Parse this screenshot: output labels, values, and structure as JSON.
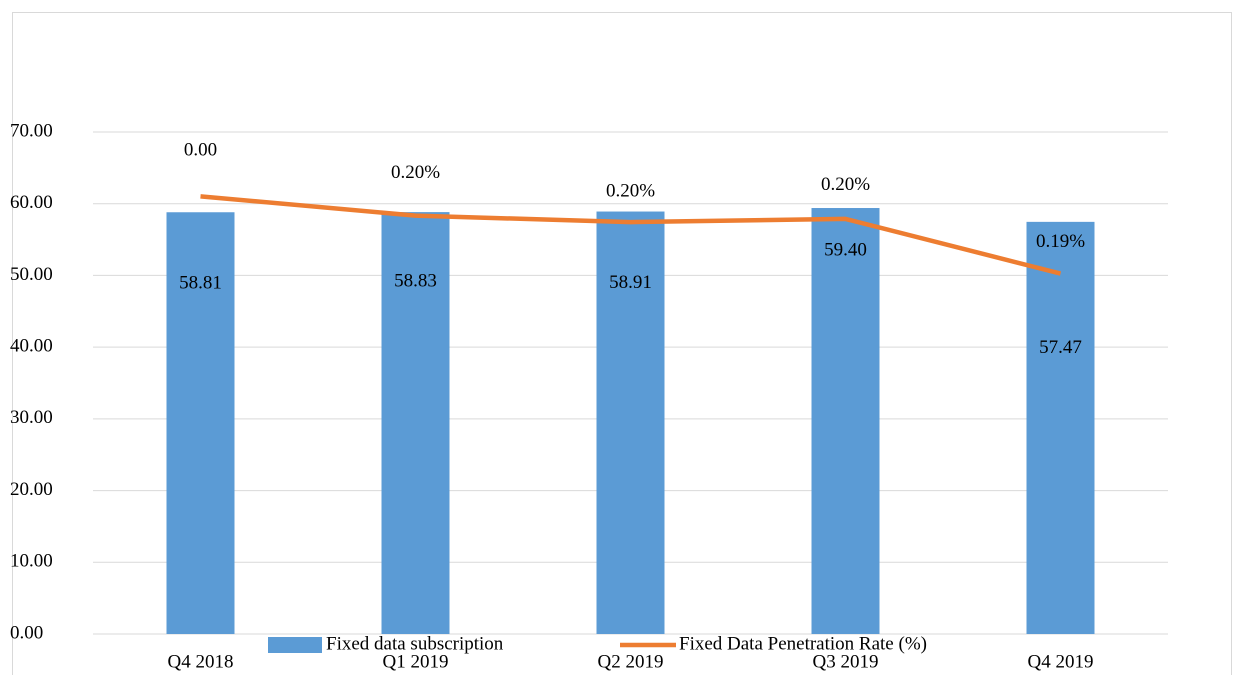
{
  "chart_data": {
    "type": "bar_line",
    "categories": [
      "Q4 2018",
      "Q1 2019",
      "Q2 2019",
      "Q3 2019",
      "Q4 2019"
    ],
    "series": [
      {
        "name": "Fixed data subscription",
        "color": "#5b9bd5",
        "type": "bar",
        "values": [
          58.81,
          58.83,
          58.91,
          59.4,
          57.47
        ],
        "value_labels": [
          "58.81",
          "58.83",
          "58.91",
          "59.40",
          "57.47"
        ]
      },
      {
        "name": "Fixed Data Penetration Rate (%)",
        "color": "#ed7d31",
        "type": "line",
        "axis": "y2",
        "values": [
          0.0021,
          0.00204,
          0.00202,
          0.00203,
          0.00186
        ],
        "value_labels": [
          "0.00",
          "0.20%",
          "0.20%",
          "0.20%",
          "0.19%"
        ]
      }
    ],
    "ylim": [
      0,
      70
    ],
    "yticks": [
      {
        "value": 0,
        "label": "0.00"
      },
      {
        "value": 10,
        "label": "10.00"
      },
      {
        "value": 20,
        "label": "20.00"
      },
      {
        "value": 30,
        "label": "30.00"
      },
      {
        "value": 40,
        "label": "40.00"
      },
      {
        "value": 50,
        "label": "50.00"
      },
      {
        "value": 60,
        "label": "60.00"
      },
      {
        "value": 70,
        "label": "70.00"
      }
    ],
    "y2lim": [
      0.00074,
      0.0023
    ],
    "grid": true,
    "legend": "bottom"
  }
}
